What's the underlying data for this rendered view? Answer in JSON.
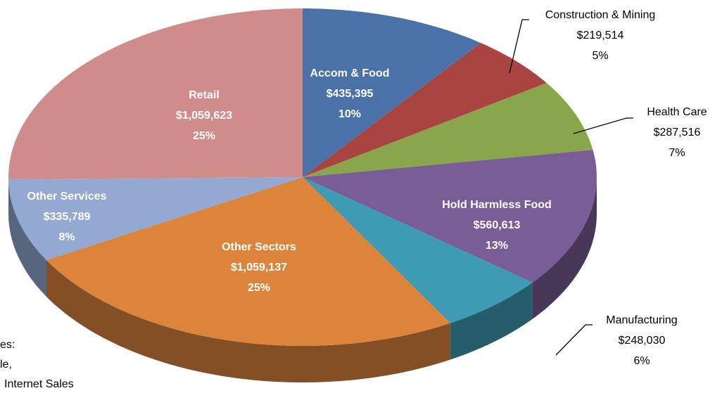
{
  "chart_data": {
    "type": "pie",
    "three_d": true,
    "categories": [
      "Accom & Food",
      "Construction & Mining",
      "Health Care",
      "Hold Harmless Food",
      "Manufacturing",
      "Other Sectors",
      "Other Services",
      "Retail"
    ],
    "values": [
      435395,
      219514,
      287516,
      560613,
      248030,
      1059137,
      335789,
      1059623
    ],
    "value_labels": [
      "$435,395",
      "$219,514",
      "$287,516",
      "$560,613",
      "$248,030",
      "$1,059,137",
      "$335,789",
      "$1,059,623"
    ],
    "percents": [
      10,
      5,
      7,
      13,
      6,
      25,
      8,
      25
    ],
    "percent_labels": [
      "10%",
      "5%",
      "7%",
      "13%",
      "6%",
      "25%",
      "8%",
      "25%"
    ],
    "colors": [
      "#4a72a8",
      "#a84442",
      "#8aa64a",
      "#7a5c96",
      "#3f9bb3",
      "#dc843c",
      "#93a9d2",
      "#d08c8a"
    ],
    "annotation_lines": [
      "es:",
      "le,",
      "Internet Sales"
    ]
  }
}
